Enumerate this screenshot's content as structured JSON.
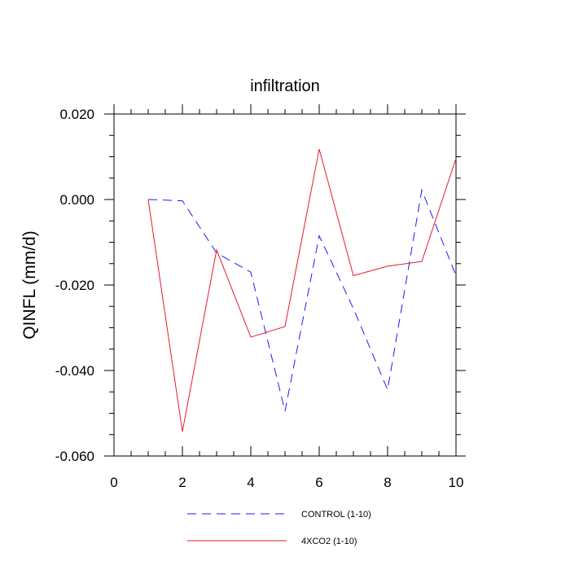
{
  "chart_data": {
    "type": "line",
    "title": "infiltration",
    "xlabel": "",
    "ylabel": "QINFL  (mm/d)",
    "xlim": [
      0,
      10
    ],
    "ylim": [
      -0.06,
      0.02
    ],
    "x_major_ticks": [
      0,
      2,
      4,
      6,
      8,
      10
    ],
    "x_tick_labels": [
      "0",
      "2",
      "4",
      "6",
      "8",
      "10"
    ],
    "y_major_ticks": [
      0.02,
      0.0,
      -0.02,
      -0.04,
      -0.06
    ],
    "y_tick_labels": [
      "0.020",
      "0.000",
      "-0.020",
      "-0.040",
      "-0.060"
    ],
    "x": [
      1,
      2,
      3,
      4,
      5,
      6,
      7,
      8,
      9,
      10
    ],
    "series": [
      {
        "name": "CONTROL (1-10)",
        "color": "#1a1aff",
        "style": "dashed",
        "values": [
          0.0,
          -0.0003,
          -0.0125,
          -0.017,
          -0.0495,
          -0.0085,
          -0.0255,
          -0.0445,
          0.0022,
          -0.0178
        ]
      },
      {
        "name": "4XCO2 (1-10)",
        "color": "#e8192c",
        "style": "solid",
        "values": [
          0.0,
          -0.0543,
          -0.0118,
          -0.0322,
          -0.0297,
          0.0118,
          -0.0178,
          -0.0156,
          -0.0145,
          0.0096
        ]
      }
    ],
    "legend": [
      {
        "label": "CONTROL (1-10)"
      },
      {
        "label": "4XCO2 (1-10)"
      }
    ],
    "legend_position": "bottom"
  }
}
